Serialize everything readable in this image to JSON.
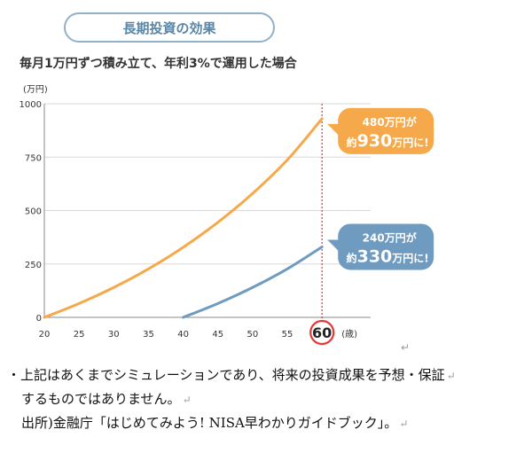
{
  "header": {
    "title": "長期投資の効果",
    "subtitle": "毎月1万円ずつ積み立て、年利3%で運用した場合"
  },
  "chart_data": {
    "type": "line",
    "ylabel": "(万円)",
    "xlabel": "(歳)",
    "xlim": [
      20,
      67
    ],
    "ylim": [
      0,
      1000
    ],
    "x_ticks": [
      "20",
      "25",
      "30",
      "35",
      "40",
      "45",
      "50",
      "55",
      "60"
    ],
    "y_ticks": [
      "0",
      "250",
      "500",
      "750",
      "1000"
    ],
    "highlight_x": "60",
    "series": [
      {
        "color": "#f5a94b",
        "x": [
          20,
          25,
          30,
          35,
          40,
          45,
          50,
          55,
          60
        ],
        "values": [
          0,
          65,
          140,
          227,
          328,
          445,
          580,
          737,
          930
        ],
        "callout": {
          "line1": "480万円が",
          "prefix": "約",
          "amount": "930",
          "suffix": "万円に!"
        }
      },
      {
        "color": "#6e9bbf",
        "x": [
          40,
          45,
          50,
          55,
          60
        ],
        "values": [
          0,
          65,
          140,
          227,
          330
        ],
        "callout": {
          "line1": "240万円が",
          "prefix": "約",
          "amount": "330",
          "suffix": "万円に!"
        }
      }
    ]
  },
  "notes": {
    "line1": "・上記はあくまでシミュレーションであり、将来の投資成果を予想・保証",
    "line2": "するものではありません。",
    "line3": "出所)金融庁「はじめてみよう! NISA早わかりガイドブック」。",
    "return_mark": "↵"
  }
}
